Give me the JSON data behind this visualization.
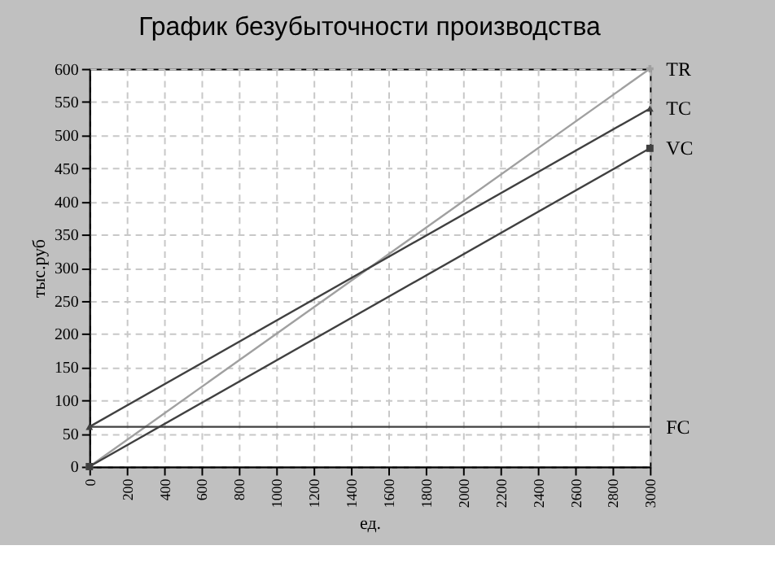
{
  "chart_data": {
    "type": "line",
    "title": "График безубыточности производства",
    "xlabel": "ед.",
    "ylabel": "тыс.руб",
    "xlim": [
      0,
      3000
    ],
    "xticks": [
      0,
      200,
      400,
      600,
      800,
      1000,
      1200,
      1400,
      1600,
      1800,
      2000,
      2200,
      2400,
      2600,
      2800,
      3000
    ],
    "ylim": [
      0,
      600
    ],
    "yticks": [
      0,
      50,
      100,
      150,
      200,
      250,
      300,
      350,
      400,
      450,
      500,
      550,
      600
    ],
    "grid": true,
    "legend": false,
    "line_style": "solid",
    "x": [
      0,
      3000
    ],
    "series": [
      {
        "name": "TR",
        "color": "#a0a0a0",
        "marker": "cross",
        "values": [
          0,
          600
        ]
      },
      {
        "name": "TC",
        "color": "#404040",
        "marker": "triangle",
        "values": [
          60,
          540
        ]
      },
      {
        "name": "VC",
        "color": "#404040",
        "marker": "square",
        "values": [
          0,
          480
        ]
      },
      {
        "name": "FC",
        "color": "#404040",
        "values": [
          60,
          60
        ]
      }
    ]
  }
}
